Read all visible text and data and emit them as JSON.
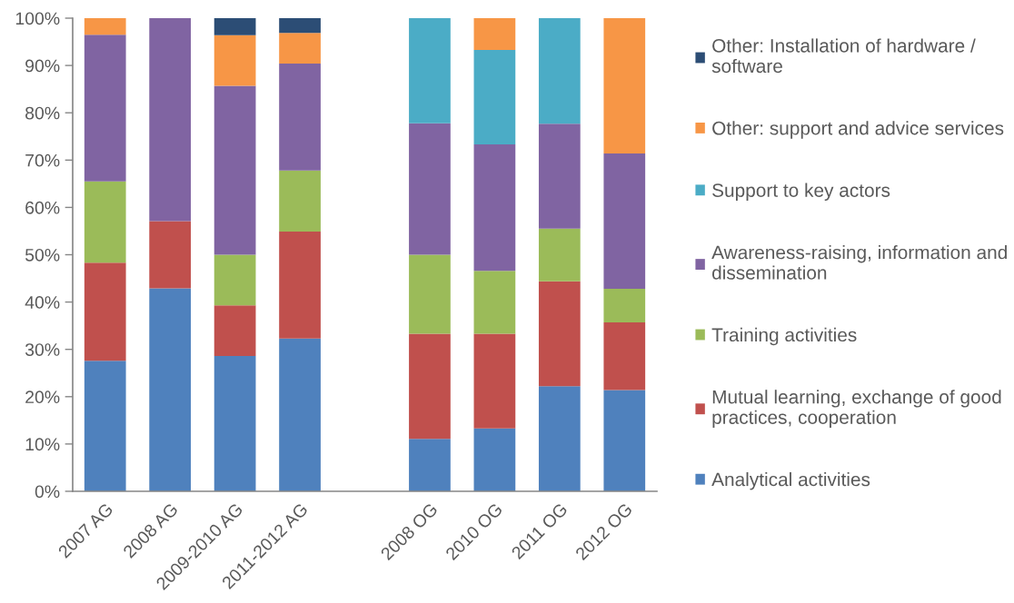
{
  "chart_data": {
    "type": "bar",
    "stacked": true,
    "categories": [
      "2007 AG",
      "2008 AG",
      "2009-2010 AG",
      "2011-2012 AG",
      null,
      "2008 OG",
      "2010 OG",
      "2011 OG",
      "2012 OG"
    ],
    "series": [
      {
        "name": "Analytical activities",
        "color": "#4f81bd",
        "values": [
          27.6,
          42.9,
          28.6,
          32.3,
          null,
          11.1,
          13.3,
          22.2,
          21.4
        ]
      },
      {
        "name": "Mutual learning, exchange of good practices, cooperation",
        "color": "#c0504d",
        "values": [
          20.7,
          14.2,
          10.7,
          22.6,
          null,
          22.2,
          20.0,
          22.2,
          14.3
        ]
      },
      {
        "name": "Training activities",
        "color": "#9bbb59",
        "values": [
          17.2,
          0,
          10.7,
          12.9,
          null,
          16.7,
          13.3,
          11.1,
          7.1
        ]
      },
      {
        "name": "Awareness-raising, information and dissemination",
        "color": "#8064a2",
        "values": [
          31.0,
          42.9,
          35.7,
          22.6,
          null,
          27.8,
          26.7,
          22.2,
          28.6
        ]
      },
      {
        "name": "Support to key actors",
        "color": "#4bacc6",
        "values": [
          0,
          0,
          0,
          0,
          null,
          22.2,
          20.0,
          22.3,
          0
        ]
      },
      {
        "name": "Other: support and advice services",
        "color": "#f79646",
        "values": [
          3.5,
          0,
          10.7,
          6.5,
          null,
          0,
          6.7,
          0,
          28.6
        ]
      },
      {
        "name": "Other: Installation of hardware / software",
        "color": "#2c4d75",
        "values": [
          0,
          0,
          3.6,
          3.1,
          null,
          0,
          0,
          0,
          0
        ]
      }
    ],
    "ylim": [
      0,
      100
    ],
    "yticks": [
      {
        "value": 0,
        "label": "0%"
      },
      {
        "value": 10,
        "label": "10%"
      },
      {
        "value": 20,
        "label": "20%"
      },
      {
        "value": 30,
        "label": "30%"
      },
      {
        "value": 40,
        "label": "40%"
      },
      {
        "value": 50,
        "label": "50%"
      },
      {
        "value": 60,
        "label": "60%"
      },
      {
        "value": 70,
        "label": "70%"
      },
      {
        "value": 80,
        "label": "80%"
      },
      {
        "value": 90,
        "label": "90%"
      },
      {
        "value": 100,
        "label": "100%"
      }
    ],
    "legend": "right"
  }
}
